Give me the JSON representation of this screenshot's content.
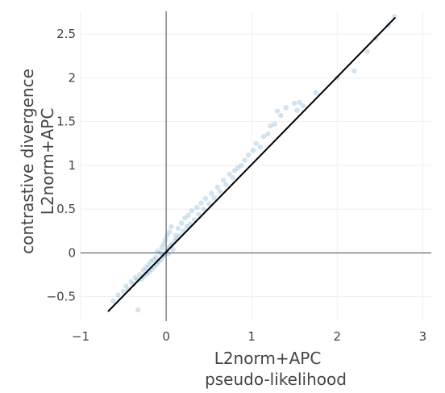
{
  "chart_data": {
    "type": "scatter",
    "title": "",
    "xlabel": [
      "L2norm+APC",
      "pseudo-likelihood"
    ],
    "ylabel": [
      "contrastive divergence",
      "L2norm+APC"
    ],
    "xlim": [
      -1.0,
      3.1
    ],
    "ylim": [
      -0.78,
      2.76
    ],
    "x_ticks": [
      -1,
      0,
      1,
      2,
      3
    ],
    "x_tick_labels": [
      "−1",
      "0",
      "1",
      "2",
      "3"
    ],
    "y_ticks": [
      -0.5,
      0,
      0.5,
      1,
      1.5,
      2,
      2.5
    ],
    "y_tick_labels": [
      "−0.5",
      "0",
      "0.5",
      "1",
      "1.5",
      "2",
      "2.5"
    ],
    "grid": true,
    "zero_lines": true,
    "colors": {
      "points": "#1f77b4",
      "fit_line": "#000000",
      "grid": "#eeeeee",
      "zero_line": "#444444"
    },
    "series": [
      {
        "marker_opacity": 0.2,
        "points": [
          [
            -0.62,
            -0.55
          ],
          [
            -0.56,
            -0.48
          ],
          [
            -0.5,
            -0.44
          ],
          [
            -0.47,
            -0.38
          ],
          [
            -0.44,
            -0.42
          ],
          [
            -0.41,
            -0.33
          ],
          [
            -0.38,
            -0.36
          ],
          [
            -0.36,
            -0.28
          ],
          [
            -0.34,
            -0.31
          ],
          [
            -0.33,
            -0.65
          ],
          [
            -0.31,
            -0.25
          ],
          [
            -0.29,
            -0.3
          ],
          [
            -0.27,
            -0.2
          ],
          [
            -0.26,
            -0.27
          ],
          [
            -0.24,
            -0.17
          ],
          [
            -0.23,
            -0.24
          ],
          [
            -0.21,
            -0.14
          ],
          [
            -0.2,
            -0.22
          ],
          [
            -0.18,
            -0.1
          ],
          [
            -0.17,
            -0.19
          ],
          [
            -0.15,
            -0.08
          ],
          [
            -0.14,
            -0.16
          ],
          [
            -0.12,
            -0.05
          ],
          [
            -0.11,
            -0.13
          ],
          [
            -0.1,
            0.02
          ],
          [
            -0.09,
            -0.1
          ],
          [
            -0.07,
            0.0
          ],
          [
            -0.06,
            -0.08
          ],
          [
            -0.05,
            0.06
          ],
          [
            -0.04,
            -0.04
          ],
          [
            -0.03,
            0.1
          ],
          [
            -0.02,
            -0.02
          ],
          [
            -0.01,
            0.15
          ],
          [
            0.0,
            0.02
          ],
          [
            0.01,
            0.2
          ],
          [
            0.02,
            0.05
          ],
          [
            0.03,
            -0.01
          ],
          [
            0.04,
            0.24
          ],
          [
            0.05,
            0.08
          ],
          [
            0.06,
            0.3
          ],
          [
            0.07,
            0.1
          ],
          [
            0.08,
            0.04
          ],
          [
            0.1,
            0.14
          ],
          [
            0.11,
            0.2
          ],
          [
            0.13,
            0.16
          ],
          [
            0.14,
            0.28
          ],
          [
            0.16,
            0.2
          ],
          [
            0.18,
            0.34
          ],
          [
            0.2,
            0.25
          ],
          [
            0.22,
            0.4
          ],
          [
            0.24,
            0.3
          ],
          [
            0.26,
            0.43
          ],
          [
            0.28,
            0.33
          ],
          [
            0.3,
            0.48
          ],
          [
            0.33,
            0.38
          ],
          [
            0.36,
            0.52
          ],
          [
            0.38,
            0.44
          ],
          [
            0.41,
            0.57
          ],
          [
            0.44,
            0.5
          ],
          [
            0.46,
            0.62
          ],
          [
            0.5,
            0.56
          ],
          [
            0.53,
            0.68
          ],
          [
            0.56,
            0.63
          ],
          [
            0.6,
            0.75
          ],
          [
            0.63,
            0.7
          ],
          [
            0.67,
            0.83
          ],
          [
            0.7,
            0.78
          ],
          [
            0.74,
            0.9
          ],
          [
            0.78,
            0.86
          ],
          [
            0.8,
            0.94
          ],
          [
            0.84,
            0.97
          ],
          [
            0.88,
            1.0
          ],
          [
            0.92,
            1.06
          ],
          [
            0.96,
            1.12
          ],
          [
            1.02,
            1.17
          ],
          [
            1.05,
            1.25
          ],
          [
            1.1,
            1.21
          ],
          [
            1.14,
            1.33
          ],
          [
            1.19,
            1.36
          ],
          [
            1.22,
            1.45
          ],
          [
            1.27,
            1.47
          ],
          [
            1.3,
            1.62
          ],
          [
            1.34,
            1.57
          ],
          [
            1.4,
            1.66
          ],
          [
            1.5,
            1.71
          ],
          [
            1.53,
            1.63
          ],
          [
            1.56,
            1.72
          ],
          [
            1.6,
            1.68
          ],
          [
            1.75,
            1.83
          ],
          [
            2.0,
            2.0
          ],
          [
            2.2,
            2.08
          ],
          [
            2.35,
            2.3
          ],
          [
            2.45,
            2.45
          ],
          [
            2.6,
            2.6
          ],
          [
            2.67,
            2.7
          ]
        ]
      }
    ],
    "fit_line": {
      "x": [
        -0.68,
        2.68
      ],
      "y": [
        -0.67,
        2.69
      ]
    }
  }
}
